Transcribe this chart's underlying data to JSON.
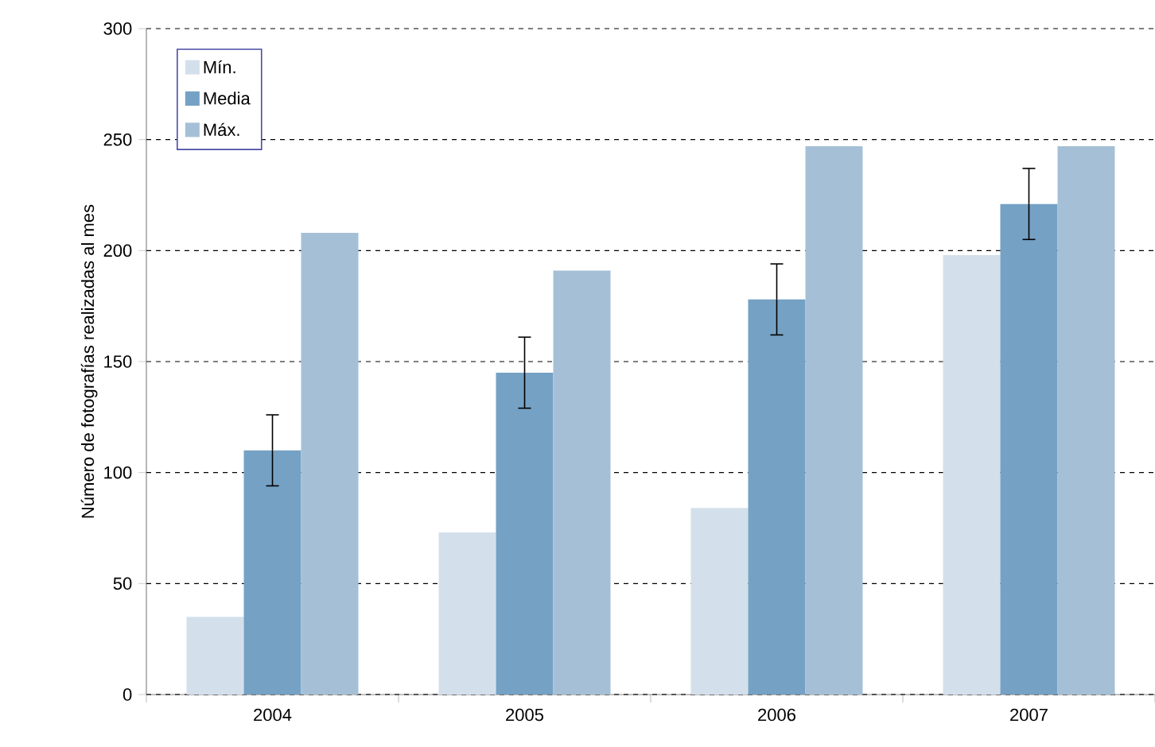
{
  "chart_data": {
    "type": "bar",
    "ylabel": "Número de fotografías realizadas al mes",
    "categories": [
      "2004",
      "2005",
      "2006",
      "2007"
    ],
    "series": [
      {
        "name": "Mín.",
        "color": "#d3e0eb",
        "values": [
          35,
          73,
          84,
          198
        ]
      },
      {
        "name": "Media",
        "color": "#75a1c4",
        "values": [
          110,
          145,
          178,
          221
        ],
        "errors": [
          16,
          16,
          16,
          16
        ]
      },
      {
        "name": "Máx.",
        "color": "#a5c0d6",
        "values": [
          208,
          191,
          247,
          247
        ]
      }
    ],
    "ylim": [
      0,
      300
    ],
    "yticks": [
      0,
      50,
      100,
      150,
      200,
      250,
      300
    ],
    "grid": "y",
    "legend": "top left"
  }
}
